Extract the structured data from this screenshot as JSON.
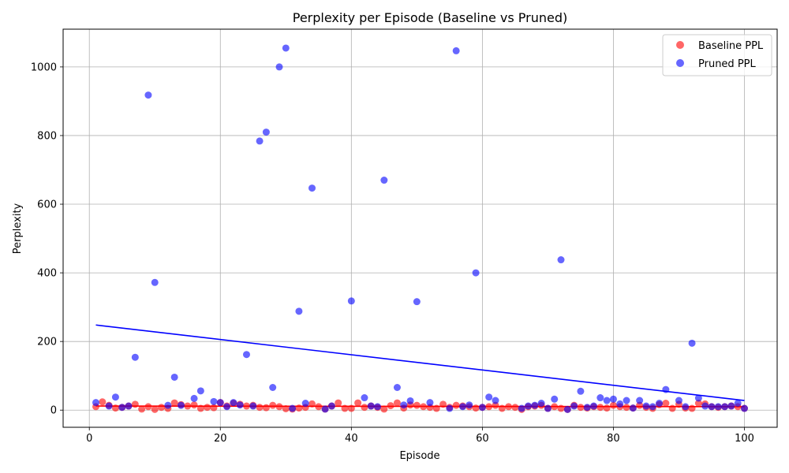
{
  "chart_data": {
    "type": "scatter",
    "title": "Perplexity per Episode (Baseline vs Pruned)",
    "xlabel": "Episode",
    "ylabel": "Perplexity",
    "xlim": [
      -4,
      105
    ],
    "ylim": [
      -50,
      1110
    ],
    "xticks": [
      0,
      20,
      40,
      60,
      80,
      100
    ],
    "yticks": [
      0,
      200,
      400,
      600,
      800,
      1000
    ],
    "grid": true,
    "legend_position": "top-right",
    "series": [
      {
        "name": "Baseline PPL",
        "color": "#ff0000",
        "x": [
          1,
          2,
          3,
          4,
          5,
          6,
          7,
          8,
          9,
          10,
          11,
          12,
          13,
          14,
          15,
          16,
          17,
          18,
          19,
          20,
          21,
          22,
          23,
          24,
          25,
          26,
          27,
          28,
          29,
          30,
          31,
          32,
          33,
          34,
          35,
          36,
          37,
          38,
          39,
          40,
          41,
          42,
          43,
          44,
          45,
          46,
          47,
          48,
          49,
          50,
          51,
          52,
          53,
          54,
          55,
          56,
          57,
          58,
          59,
          60,
          61,
          62,
          63,
          64,
          65,
          66,
          67,
          68,
          69,
          70,
          71,
          72,
          73,
          74,
          75,
          76,
          77,
          78,
          79,
          80,
          81,
          82,
          83,
          84,
          85,
          86,
          87,
          88,
          89,
          90,
          91,
          92,
          93,
          94,
          95,
          96,
          97,
          98,
          99,
          100
        ],
        "y": [
          10,
          24,
          14,
          6,
          8,
          12,
          17,
          3,
          10,
          2,
          8,
          5,
          21,
          16,
          12,
          15,
          5,
          8,
          7,
          22,
          12,
          20,
          17,
          12,
          14,
          8,
          7,
          14,
          10,
          4,
          3,
          6,
          8,
          18,
          10,
          3,
          12,
          21,
          5,
          5,
          21,
          8,
          12,
          8,
          3,
          13,
          21,
          6,
          15,
          14,
          10,
          8,
          5,
          17,
          8,
          14,
          12,
          10,
          6,
          8,
          10,
          14,
          5,
          10,
          8,
          2,
          10,
          12,
          14,
          5,
          10,
          5,
          2,
          14,
          8,
          6,
          10,
          8,
          6,
          14,
          10,
          8,
          6,
          14,
          8,
          5,
          16,
          20,
          5,
          17,
          6,
          5,
          20,
          18,
          10,
          8,
          10,
          12,
          10,
          5
        ],
        "trend": {
          "x": [
            1,
            100
          ],
          "y": [
            12,
            10
          ]
        }
      },
      {
        "name": "Pruned PPL",
        "color": "#0000ff",
        "x": [
          1,
          3,
          4,
          5,
          6,
          7,
          9,
          10,
          12,
          13,
          14,
          16,
          17,
          19,
          20,
          21,
          22,
          23,
          24,
          25,
          26,
          27,
          28,
          29,
          30,
          31,
          32,
          33,
          34,
          36,
          37,
          40,
          42,
          43,
          44,
          45,
          47,
          48,
          49,
          50,
          52,
          55,
          56,
          57,
          58,
          59,
          60,
          61,
          62,
          66,
          67,
          68,
          69,
          70,
          71,
          72,
          73,
          74,
          75,
          76,
          77,
          78,
          79,
          80,
          81,
          82,
          83,
          84,
          85,
          86,
          87,
          88,
          90,
          91,
          92,
          93,
          94,
          95,
          96,
          97,
          98,
          99,
          100
        ],
        "y": [
          22,
          12,
          38,
          8,
          12,
          154,
          918,
          372,
          14,
          96,
          14,
          34,
          56,
          25,
          22,
          10,
          22,
          15,
          162,
          12,
          784,
          810,
          66,
          1000,
          1055,
          5,
          288,
          20,
          647,
          3,
          12,
          318,
          36,
          12,
          10,
          670,
          66,
          15,
          27,
          316,
          22,
          5,
          1047,
          10,
          15,
          400,
          8,
          38,
          28,
          5,
          12,
          14,
          20,
          5,
          32,
          438,
          2,
          12,
          55,
          8,
          12,
          36,
          28,
          32,
          18,
          28,
          6,
          28,
          12,
          10,
          20,
          60,
          28,
          10,
          195,
          35,
          12,
          10,
          10,
          10,
          12,
          20,
          5
        ],
        "trend": {
          "x": [
            1,
            100
          ],
          "y": [
            248,
            28
          ]
        }
      }
    ]
  }
}
